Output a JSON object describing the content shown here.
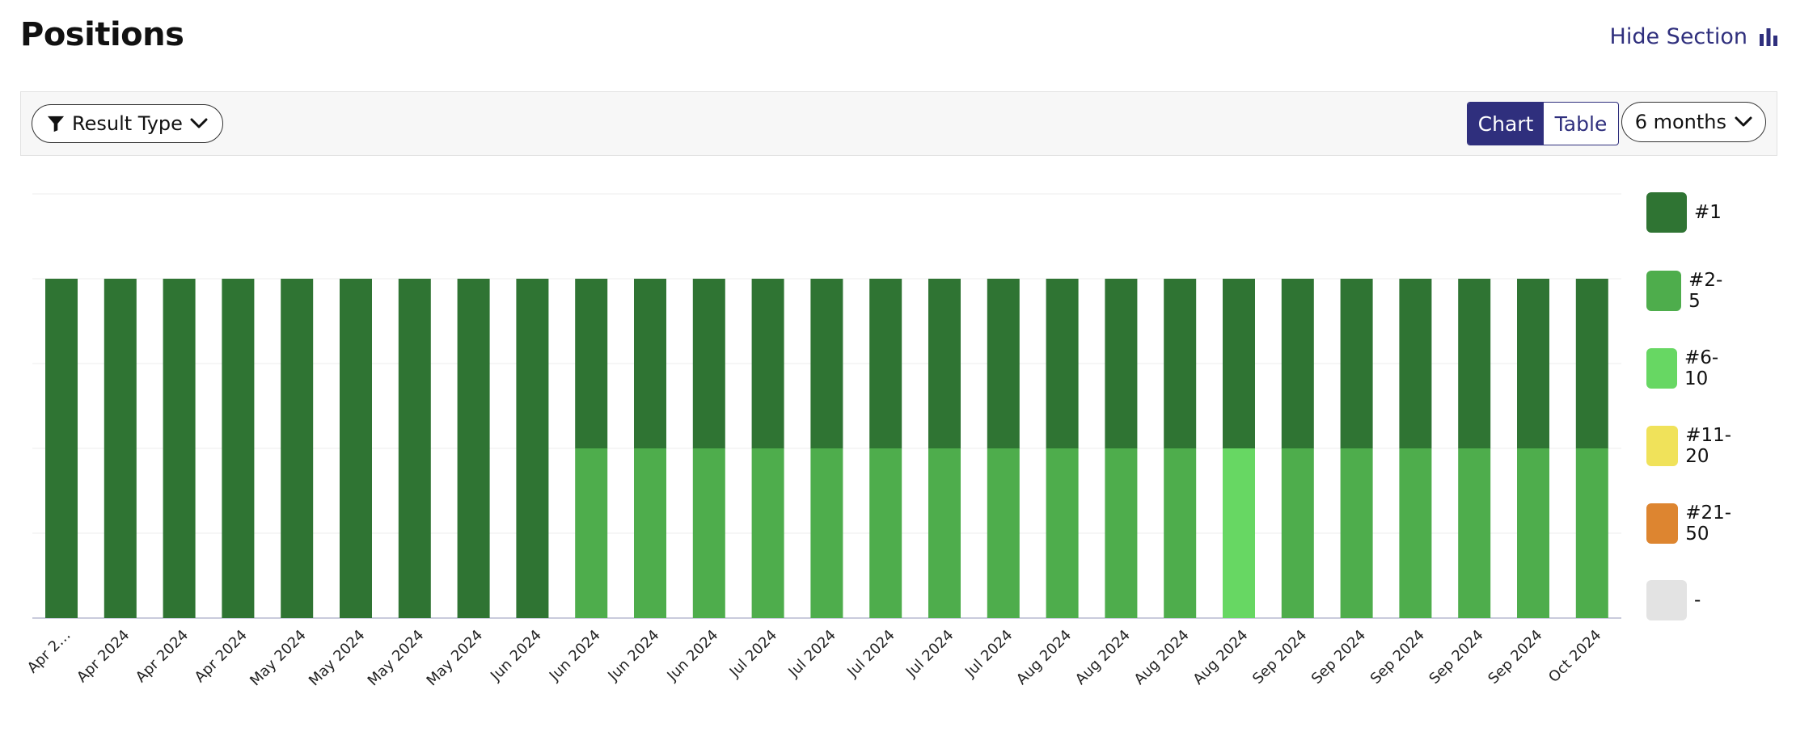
{
  "header": {
    "title": "Positions",
    "hide_section_label": "Hide Section",
    "hide_section_icon": "bar-chart-icon"
  },
  "toolbar": {
    "filter_label": "Result Type",
    "filter_icon": "filter-icon",
    "view_options": [
      "Chart",
      "Table"
    ],
    "active_view": "Chart",
    "range_label": "6 months"
  },
  "colors": {
    "accent": "#2f2f7d",
    "pos_1": "#2f7433",
    "pos_2_5": "#4ead4c",
    "pos_6_10": "#67d763",
    "pos_11_20": "#f0e25a",
    "pos_21_50": "#dd8530",
    "none": "#e3e3e3"
  },
  "legend": [
    {
      "label": "#1",
      "color": "#2f7433"
    },
    {
      "label": "#2-5",
      "color": "#4ead4c"
    },
    {
      "label": "#6-10",
      "color": "#67d763"
    },
    {
      "label": "#11-20",
      "color": "#f0e25a"
    },
    {
      "label": "#21-50",
      "color": "#dd8530"
    },
    {
      "label": "-",
      "color": "#e3e3e3"
    }
  ],
  "chart_data": {
    "type": "bar",
    "stacked": true,
    "grid": true,
    "legend_position": "right",
    "ylim": [
      0,
      5
    ],
    "categories": [
      "Apr 2…",
      "Apr 2024",
      "Apr 2024",
      "Apr 2024",
      "May 2024",
      "May 2024",
      "May 2024",
      "May 2024",
      "Jun 2024",
      "Jun 2024",
      "Jun 2024",
      "Jun 2024",
      "Jul 2024",
      "Jul 2024",
      "Jul 2024",
      "Jul 2024",
      "Jul 2024",
      "Aug 2024",
      "Aug 2024",
      "Aug 2024",
      "Aug 2024",
      "Sep 2024",
      "Sep 2024",
      "Sep 2024",
      "Sep 2024",
      "Sep 2024",
      "Oct 2024"
    ],
    "series": [
      {
        "name": "#1",
        "values": [
          4,
          4,
          4,
          4,
          4,
          4,
          4,
          4,
          4,
          2,
          2,
          2,
          2,
          2,
          2,
          2,
          2,
          2,
          2,
          2,
          2,
          2,
          2,
          2,
          2,
          2,
          2
        ]
      },
      {
        "name": "#2-5",
        "values": [
          0,
          0,
          0,
          0,
          0,
          0,
          0,
          0,
          0,
          2,
          2,
          2,
          2,
          2,
          2,
          2,
          2,
          2,
          2,
          2,
          0,
          2,
          2,
          2,
          2,
          2,
          2
        ]
      },
      {
        "name": "#6-10",
        "values": [
          0,
          0,
          0,
          0,
          0,
          0,
          0,
          0,
          0,
          0,
          0,
          0,
          0,
          0,
          0,
          0,
          0,
          0,
          0,
          0,
          2,
          0,
          0,
          0,
          0,
          0,
          0
        ]
      }
    ]
  }
}
